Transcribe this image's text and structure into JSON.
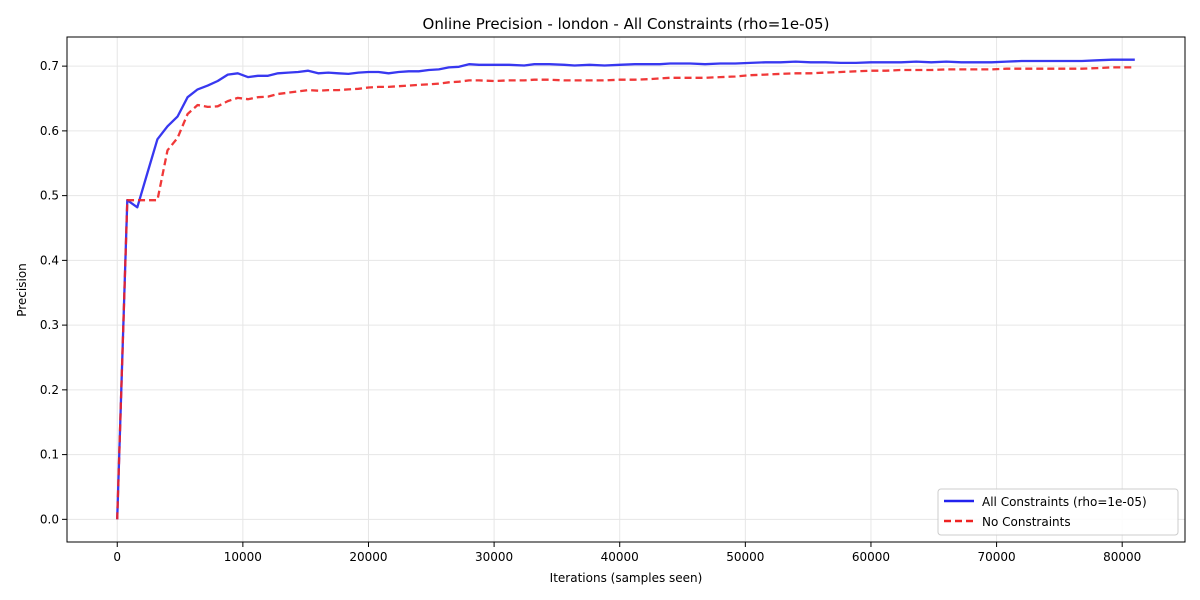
{
  "chart_data": {
    "type": "line",
    "title": "Online Precision - london - All Constraints (rho=1e-05)",
    "xlabel": "Iterations (samples seen)",
    "ylabel": "Precision",
    "xlim": [
      -4000,
      85000
    ],
    "ylim": [
      -0.035,
      0.745
    ],
    "xticks": [
      0,
      10000,
      20000,
      30000,
      40000,
      50000,
      60000,
      70000,
      80000
    ],
    "xtick_labels": [
      "0",
      "10000",
      "20000",
      "30000",
      "40000",
      "50000",
      "60000",
      "70000",
      "80000"
    ],
    "yticks": [
      0.0,
      0.1,
      0.2,
      0.3,
      0.4,
      0.5,
      0.6,
      0.7
    ],
    "ytick_labels": [
      "0.0",
      "0.1",
      "0.2",
      "0.3",
      "0.4",
      "0.5",
      "0.6",
      "0.7"
    ],
    "grid": true,
    "legend_position": "bottom-right",
    "series": [
      {
        "name": "All Constraints (rho=1e-05)",
        "color": "#2222ee",
        "style": "solid",
        "points": [
          [
            0,
            0.0
          ],
          [
            800,
            0.493
          ],
          [
            1600,
            0.482
          ],
          [
            2400,
            0.535
          ],
          [
            3200,
            0.587
          ],
          [
            4000,
            0.607
          ],
          [
            4800,
            0.622
          ],
          [
            5600,
            0.652
          ],
          [
            6400,
            0.664
          ],
          [
            7200,
            0.67
          ],
          [
            8000,
            0.677
          ],
          [
            8800,
            0.687
          ],
          [
            9600,
            0.689
          ],
          [
            10400,
            0.683
          ],
          [
            11200,
            0.685
          ],
          [
            12000,
            0.685
          ],
          [
            12800,
            0.689
          ],
          [
            13600,
            0.69
          ],
          [
            14400,
            0.691
          ],
          [
            15200,
            0.693
          ],
          [
            16000,
            0.689
          ],
          [
            16800,
            0.69
          ],
          [
            17600,
            0.689
          ],
          [
            18400,
            0.688
          ],
          [
            19200,
            0.69
          ],
          [
            20000,
            0.691
          ],
          [
            20800,
            0.691
          ],
          [
            21600,
            0.689
          ],
          [
            22400,
            0.691
          ],
          [
            23200,
            0.692
          ],
          [
            24000,
            0.692
          ],
          [
            24800,
            0.694
          ],
          [
            25600,
            0.695
          ],
          [
            26400,
            0.698
          ],
          [
            27200,
            0.699
          ],
          [
            28000,
            0.703
          ],
          [
            28800,
            0.702
          ],
          [
            30000,
            0.702
          ],
          [
            31200,
            0.702
          ],
          [
            32400,
            0.701
          ],
          [
            33200,
            0.703
          ],
          [
            34400,
            0.703
          ],
          [
            35600,
            0.702
          ],
          [
            36400,
            0.701
          ],
          [
            37600,
            0.702
          ],
          [
            38800,
            0.701
          ],
          [
            40000,
            0.702
          ],
          [
            41200,
            0.703
          ],
          [
            42400,
            0.703
          ],
          [
            43200,
            0.703
          ],
          [
            44000,
            0.704
          ],
          [
            45600,
            0.704
          ],
          [
            46800,
            0.703
          ],
          [
            48000,
            0.704
          ],
          [
            49200,
            0.704
          ],
          [
            50400,
            0.705
          ],
          [
            51600,
            0.706
          ],
          [
            52800,
            0.706
          ],
          [
            54000,
            0.707
          ],
          [
            55200,
            0.706
          ],
          [
            56400,
            0.706
          ],
          [
            57600,
            0.705
          ],
          [
            58800,
            0.705
          ],
          [
            60000,
            0.706
          ],
          [
            61200,
            0.706
          ],
          [
            62400,
            0.706
          ],
          [
            63600,
            0.707
          ],
          [
            64800,
            0.706
          ],
          [
            66000,
            0.707
          ],
          [
            67200,
            0.706
          ],
          [
            68400,
            0.706
          ],
          [
            69600,
            0.706
          ],
          [
            70800,
            0.707
          ],
          [
            72000,
            0.708
          ],
          [
            73200,
            0.708
          ],
          [
            74400,
            0.708
          ],
          [
            75600,
            0.708
          ],
          [
            76800,
            0.708
          ],
          [
            78000,
            0.709
          ],
          [
            79200,
            0.71
          ],
          [
            80400,
            0.71
          ],
          [
            81000,
            0.71
          ]
        ]
      },
      {
        "name": "No Constraints",
        "color": "#ee2222",
        "style": "dashed",
        "points": [
          [
            0,
            0.0
          ],
          [
            800,
            0.493
          ],
          [
            1600,
            0.493
          ],
          [
            2400,
            0.493
          ],
          [
            3200,
            0.493
          ],
          [
            4000,
            0.57
          ],
          [
            4800,
            0.589
          ],
          [
            5600,
            0.626
          ],
          [
            6400,
            0.64
          ],
          [
            7200,
            0.637
          ],
          [
            8000,
            0.638
          ],
          [
            8800,
            0.646
          ],
          [
            9600,
            0.651
          ],
          [
            10400,
            0.649
          ],
          [
            11200,
            0.652
          ],
          [
            12000,
            0.653
          ],
          [
            12800,
            0.657
          ],
          [
            13600,
            0.659
          ],
          [
            14400,
            0.661
          ],
          [
            15200,
            0.663
          ],
          [
            16000,
            0.662
          ],
          [
            16800,
            0.663
          ],
          [
            17600,
            0.663
          ],
          [
            18400,
            0.664
          ],
          [
            19200,
            0.665
          ],
          [
            20000,
            0.667
          ],
          [
            20800,
            0.668
          ],
          [
            21600,
            0.668
          ],
          [
            22400,
            0.669
          ],
          [
            23200,
            0.67
          ],
          [
            24000,
            0.671
          ],
          [
            24800,
            0.672
          ],
          [
            25600,
            0.673
          ],
          [
            26400,
            0.675
          ],
          [
            27200,
            0.676
          ],
          [
            28000,
            0.678
          ],
          [
            28800,
            0.678
          ],
          [
            30000,
            0.677
          ],
          [
            31200,
            0.678
          ],
          [
            32400,
            0.678
          ],
          [
            33200,
            0.679
          ],
          [
            34400,
            0.679
          ],
          [
            35600,
            0.678
          ],
          [
            36400,
            0.678
          ],
          [
            37600,
            0.678
          ],
          [
            38800,
            0.678
          ],
          [
            40000,
            0.679
          ],
          [
            41200,
            0.679
          ],
          [
            42400,
            0.68
          ],
          [
            43200,
            0.681
          ],
          [
            44000,
            0.682
          ],
          [
            45600,
            0.682
          ],
          [
            46800,
            0.682
          ],
          [
            48000,
            0.683
          ],
          [
            49200,
            0.684
          ],
          [
            50400,
            0.686
          ],
          [
            51600,
            0.687
          ],
          [
            52800,
            0.688
          ],
          [
            54000,
            0.689
          ],
          [
            55200,
            0.689
          ],
          [
            56400,
            0.69
          ],
          [
            57600,
            0.691
          ],
          [
            58800,
            0.692
          ],
          [
            60000,
            0.693
          ],
          [
            61200,
            0.693
          ],
          [
            62400,
            0.694
          ],
          [
            63600,
            0.694
          ],
          [
            64800,
            0.694
          ],
          [
            66000,
            0.695
          ],
          [
            67200,
            0.695
          ],
          [
            68400,
            0.695
          ],
          [
            69600,
            0.695
          ],
          [
            70800,
            0.696
          ],
          [
            72000,
            0.696
          ],
          [
            73200,
            0.696
          ],
          [
            74400,
            0.696
          ],
          [
            75600,
            0.696
          ],
          [
            76800,
            0.696
          ],
          [
            78000,
            0.697
          ],
          [
            79200,
            0.698
          ],
          [
            80400,
            0.698
          ],
          [
            81000,
            0.698
          ]
        ]
      }
    ]
  }
}
